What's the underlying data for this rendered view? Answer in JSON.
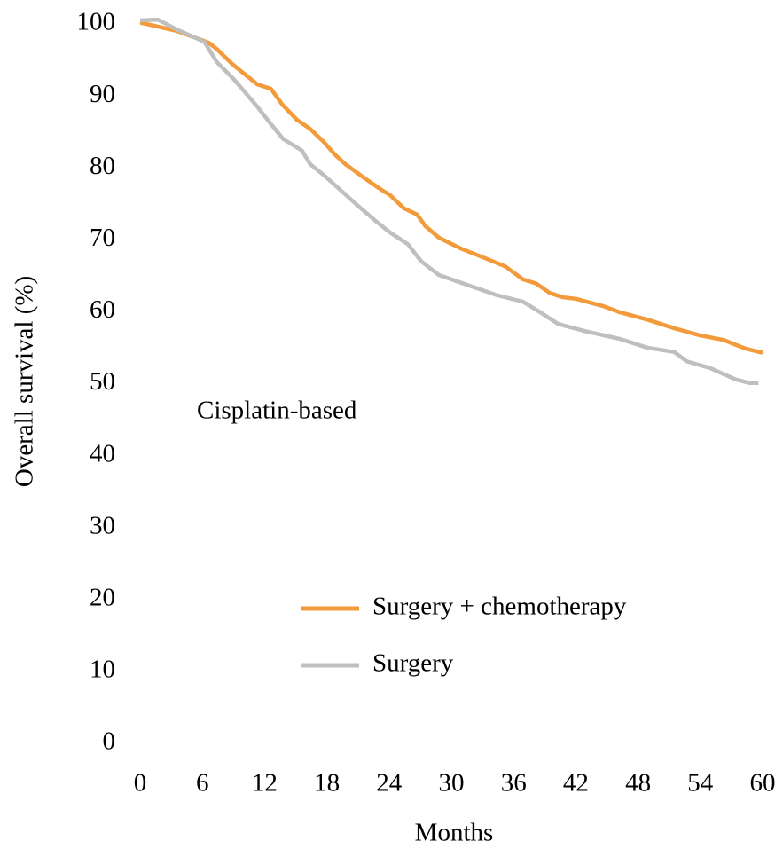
{
  "chart_data": {
    "type": "line",
    "xlabel": "Months",
    "ylabel": "Overall survival (%)",
    "annotation": "Cisplatin-based",
    "xlim": [
      0,
      60
    ],
    "xticks": [
      0,
      6,
      12,
      18,
      24,
      30,
      36,
      42,
      48,
      54,
      60
    ],
    "ylim": [
      0,
      100
    ],
    "yticks": [
      0,
      10,
      20,
      30,
      40,
      50,
      60,
      70,
      80,
      90,
      100
    ],
    "grid": false,
    "legend": "lower right",
    "series": [
      {
        "name": "Surgery + chemotherapy",
        "color": "#f39a3a",
        "x": [
          0,
          3.6,
          6.6,
          7.4,
          8.9,
          11.3,
          12.6,
          13.7,
          15.1,
          16.4,
          17.7,
          18.8,
          19.8,
          21.5,
          23.2,
          24.1,
          25.4,
          26.7,
          27.5,
          28.8,
          30.9,
          33.5,
          35.2,
          36.9,
          38.2,
          39.5,
          40.8,
          42,
          44.6,
          46.3,
          48.9,
          51.5,
          54,
          56.2,
          58.3,
          60
        ],
        "values": [
          100.2,
          99,
          97.4,
          96.5,
          94.4,
          91.6,
          91,
          88.8,
          86.7,
          85.4,
          83.6,
          81.8,
          80.5,
          78.7,
          77,
          76.2,
          74.4,
          73.5,
          71.9,
          70.3,
          68.8,
          67.3,
          66.3,
          64.5,
          63.9,
          62.6,
          62,
          61.8,
          60.8,
          59.9,
          58.9,
          57.7,
          56.7,
          56.1,
          54.9,
          54.3
        ]
      },
      {
        "name": "Surgery",
        "color": "#bfbfbf",
        "x": [
          0,
          1.7,
          3.6,
          6.2,
          7.4,
          9.1,
          11.3,
          12.6,
          13.8,
          15.6,
          16.4,
          17.7,
          19.4,
          21.1,
          22.8,
          24.1,
          25.8,
          27.1,
          28.8,
          31.8,
          34.4,
          36.9,
          38.6,
          40.3,
          42.9,
          46.3,
          48.9,
          51.5,
          52.7,
          54.9,
          57.4,
          58.7,
          59.6
        ],
        "values": [
          100.5,
          100.6,
          99.2,
          97.5,
          94.7,
          92.2,
          88.5,
          86.1,
          84,
          82.4,
          80.5,
          79,
          76.8,
          74.6,
          72.5,
          71,
          69.4,
          67,
          65.1,
          63.6,
          62.3,
          61.4,
          59.9,
          58.3,
          57.3,
          56.2,
          55,
          54.4,
          53.1,
          52.2,
          50.6,
          50.1,
          50.1
        ]
      }
    ]
  }
}
